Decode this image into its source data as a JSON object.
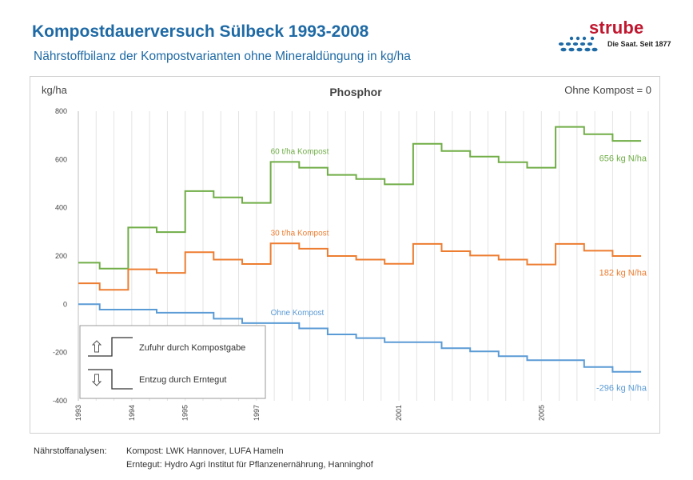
{
  "header": {
    "title": "Kompostdauerversuch Sülbeck 1993-2008",
    "subtitle": "Nährstoffbilanz der Kompostvarianten ohne Mineraldüngung in kg/ha"
  },
  "logo": {
    "word": "strube",
    "tagline": "Die Saat. Seit 1877",
    "color": "#c0172f",
    "dot_color": "#1f6aa5"
  },
  "chart_data": {
    "type": "line",
    "step": true,
    "title": "Phosphor",
    "ylabel": "kg/ha",
    "xlabel": "",
    "corner_note": "Ohne Kompost = 0",
    "ylim": [
      -400,
      800
    ],
    "yticks": [
      -400,
      -200,
      0,
      200,
      400,
      600,
      800
    ],
    "xlim": [
      1993.0,
      2009.0
    ],
    "xticks": [
      {
        "label": "1993",
        "x": 1993.0
      },
      {
        "label": "1994",
        "x": 1994.5
      },
      {
        "label": "1995",
        "x": 1996.0
      },
      {
        "label": "1997",
        "x": 1998.0
      },
      {
        "label": "2001",
        "x": 2002.0
      },
      {
        "label": "2005",
        "x": 2006.0
      }
    ],
    "grid": {
      "vertical": true,
      "horizontal": false
    },
    "series": [
      {
        "name": "60 t/ha Kompost",
        "end_label": "656 kg N/ha",
        "color": "#70ad47",
        "x": [
          1993.0,
          1993.6,
          1994.4,
          1995.2,
          1996.0,
          1996.8,
          1997.6,
          1998.4,
          1999.2,
          2000.0,
          2000.8,
          2001.6,
          2002.4,
          2003.2,
          2004.0,
          2004.8,
          2005.6,
          2006.4,
          2007.2,
          2008.0,
          2008.8
        ],
        "values": [
          172,
          148,
          318,
          299,
          469,
          443,
          420,
          590,
          566,
          536,
          519,
          497,
          665,
          635,
          612,
          589,
          566,
          735,
          705,
          677,
          656
        ]
      },
      {
        "name": "30 t/ha Kompost",
        "end_label": "182 kg N/ha",
        "color": "#ed7d31",
        "x": [
          1993.0,
          1993.6,
          1994.4,
          1995.2,
          1996.0,
          1996.8,
          1997.6,
          1998.4,
          1999.2,
          2000.0,
          2000.8,
          2001.6,
          2002.4,
          2003.2,
          2004.0,
          2004.8,
          2005.6,
          2006.4,
          2007.2,
          2008.0,
          2008.8
        ],
        "values": [
          87,
          60,
          145,
          130,
          216,
          185,
          167,
          252,
          230,
          200,
          185,
          168,
          250,
          220,
          202,
          185,
          165,
          250,
          222,
          200,
          182
        ]
      },
      {
        "name": "Ohne Kompost",
        "end_label": "-296 kg N/ha",
        "color": "#5b9bd5",
        "x": [
          1993.0,
          1993.6,
          1994.4,
          1995.2,
          1996.0,
          1996.8,
          1997.6,
          1998.4,
          1999.2,
          2000.0,
          2000.8,
          2001.6,
          2002.4,
          2003.2,
          2004.0,
          2004.8,
          2005.6,
          2006.4,
          2007.2,
          2008.0,
          2008.8
        ],
        "values": [
          0,
          -22,
          -22,
          -35,
          -35,
          -60,
          -78,
          -78,
          -100,
          -125,
          -140,
          -157,
          -157,
          -182,
          -195,
          -215,
          -232,
          -232,
          -260,
          -280,
          -296
        ]
      }
    ],
    "legend": {
      "position": "bottom-left",
      "items": [
        {
          "icon": "step-up-arrow-icon",
          "label": "Zufuhr durch Kompostgabe"
        },
        {
          "icon": "step-down-arrow-icon",
          "label": "Entzug durch Erntegut"
        }
      ]
    }
  },
  "footer": {
    "label": "Nährstoffanalysen:",
    "line1": "Kompost:  LWK Hannover, LUFA Hameln",
    "line2": "Erntegut:  Hydro Agri Institut für Pflanzenernährung, Hanninghof"
  }
}
